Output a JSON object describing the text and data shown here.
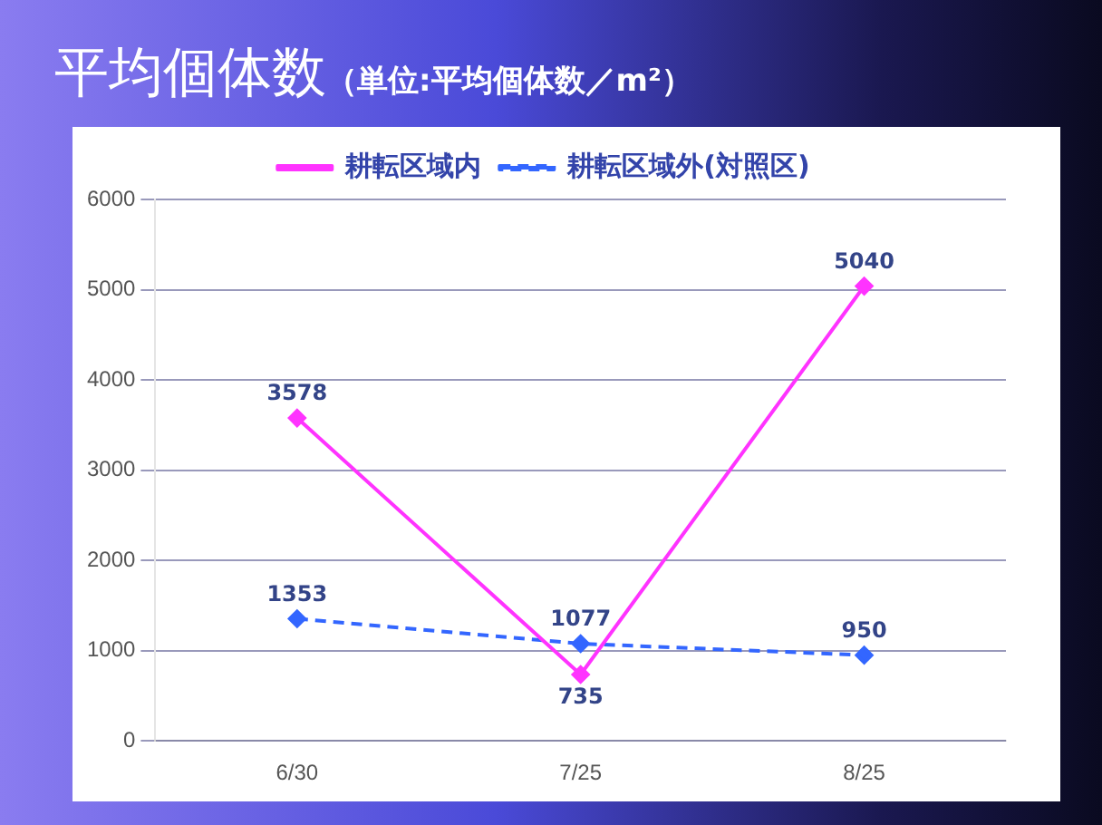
{
  "chart_data": {
    "type": "line",
    "title": "平均個体数",
    "subtitle": "（単位:平均個体数／m²）",
    "categories": [
      "6/30",
      "7/25",
      "8/25"
    ],
    "series": [
      {
        "name": "耕転区域内",
        "color": "#ff33ff",
        "values": [
          3578,
          735,
          5040
        ],
        "line_style": "solid"
      },
      {
        "name": "耕転区域外(対照区)",
        "color": "#3366ff",
        "values": [
          1353,
          1077,
          950
        ],
        "line_style": "dashed"
      }
    ],
    "ylim": [
      0,
      6000
    ],
    "yticks": [
      0,
      1000,
      2000,
      3000,
      4000,
      5000,
      6000
    ],
    "grid": "y",
    "legend": "top",
    "marker": "diamond",
    "data_labels": true
  }
}
